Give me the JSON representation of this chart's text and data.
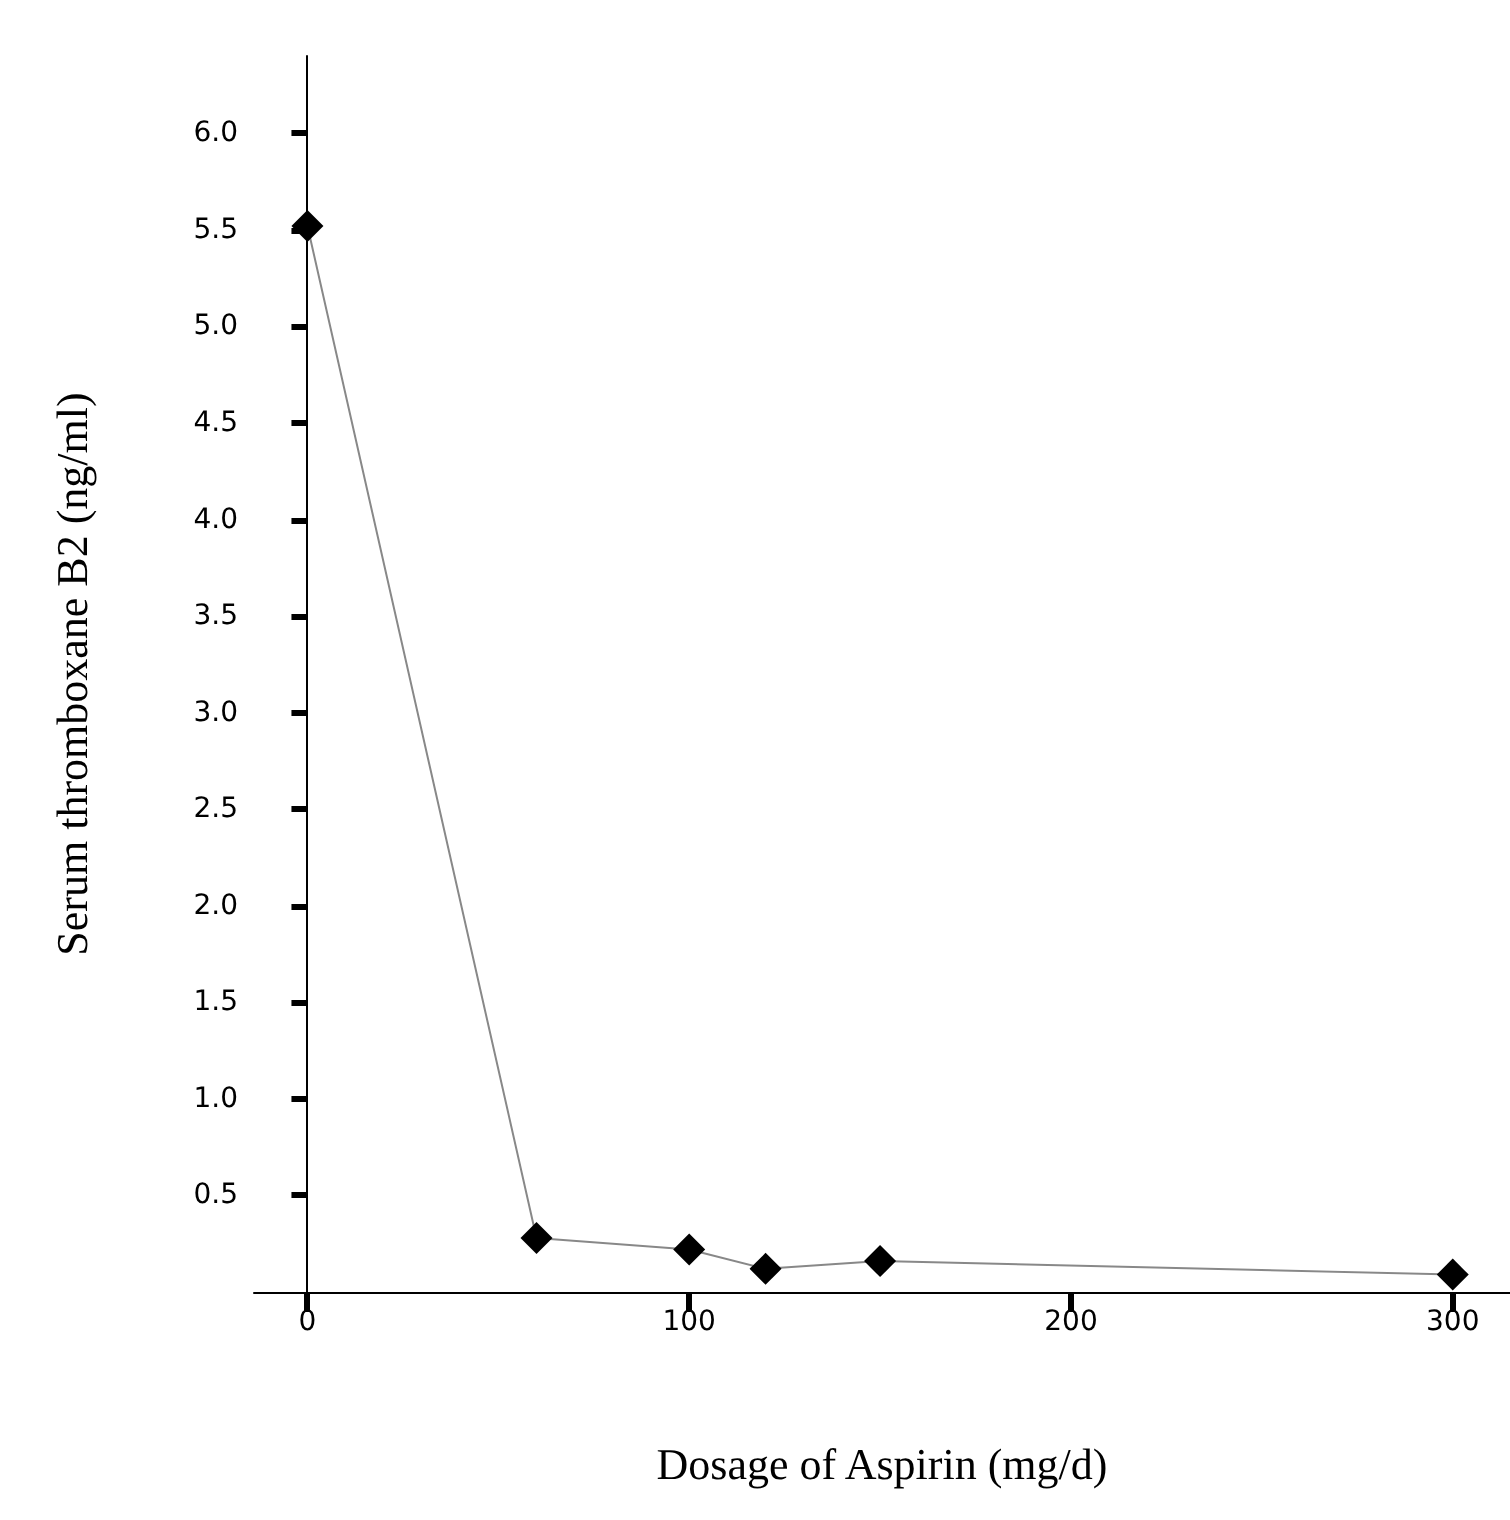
{
  "chart_data": {
    "type": "line",
    "xlabel": "Dosage of Aspirin (mg/d)",
    "ylabel": "Serum thromboxane B2 (ng/ml)",
    "x": [
      0,
      60,
      100,
      120,
      150,
      300
    ],
    "series": [
      {
        "color": "#000000",
        "values": [
          5.52,
          0.28,
          0.22,
          0.12,
          0.16,
          0.09
        ]
      }
    ],
    "xlim": [
      -14,
      315
    ],
    "xticks": [
      0,
      100,
      200,
      300
    ],
    "ylim": [
      0,
      6.4
    ],
    "yticks": [
      {
        "value": 0.5,
        "label": "0.5"
      },
      {
        "value": 1.0,
        "label": "1.0"
      },
      {
        "value": 1.5,
        "label": "1.5"
      },
      {
        "value": 2.0,
        "label": "2.0"
      },
      {
        "value": 2.5,
        "label": "2.5"
      },
      {
        "value": 3.0,
        "label": "3.0"
      },
      {
        "value": 3.5,
        "label": "3.5"
      },
      {
        "value": 4.0,
        "label": "4.0"
      },
      {
        "value": 4.5,
        "label": "4.5"
      },
      {
        "value": 5.0,
        "label": "5.0"
      },
      {
        "value": 5.5,
        "label": "5.5"
      },
      {
        "value": 6.0,
        "label": "6.0"
      }
    ],
    "grid": false,
    "marker": "diamond",
    "line_style": "solid"
  }
}
